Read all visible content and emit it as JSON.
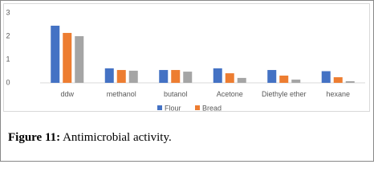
{
  "chart_data": {
    "type": "bar",
    "categories": [
      "ddw",
      "methanol",
      "butanol",
      "Acetone",
      "Diethyle ether",
      "hexane"
    ],
    "series": [
      {
        "name": "Flour",
        "color": "#4472c4",
        "values": [
          2.45,
          0.62,
          0.55,
          0.62,
          0.55,
          0.5
        ]
      },
      {
        "name": "Bread",
        "color": "#ed7d31",
        "values": [
          2.14,
          0.55,
          0.55,
          0.41,
          0.31,
          0.24
        ]
      },
      {
        "color": "#a5a5a5",
        "values": [
          2.0,
          0.52,
          0.48,
          0.21,
          0.14,
          0.07
        ]
      }
    ],
    "ylim": [
      0,
      3
    ],
    "yticks": [
      0,
      1,
      2,
      3
    ],
    "grid": false
  },
  "caption": {
    "label": "Figure 11:",
    "text": "Antimicrobial activity."
  }
}
